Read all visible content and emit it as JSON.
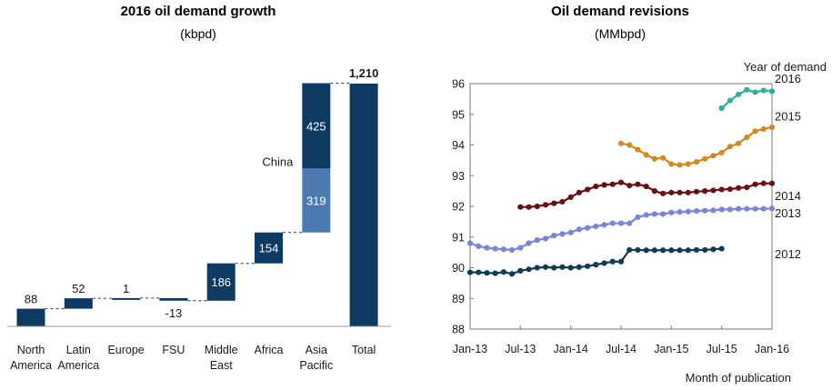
{
  "chart_data": [
    {
      "type": "bar",
      "title": "2016 oil demand growth",
      "subtitle": "(kbpd)",
      "categories": [
        "North America",
        "Latin America",
        "Europe",
        "FSU",
        "Middle East",
        "Africa",
        "Asia Pacific",
        "Total"
      ],
      "category_lines": [
        [
          "North",
          "America"
        ],
        [
          "Latin",
          "America"
        ],
        [
          "Europe"
        ],
        [
          "FSU"
        ],
        [
          "Middle",
          "East"
        ],
        [
          "Africa"
        ],
        [
          "Asia",
          "Pacific"
        ],
        [
          "Total"
        ]
      ],
      "values": [
        88,
        52,
        1,
        -13,
        186,
        154,
        744,
        1210
      ],
      "labels": [
        "88",
        "52",
        "1",
        "-13",
        "186",
        "154",
        "",
        "1,210"
      ],
      "asia_pacific_split": [
        {
          "name": "China",
          "value": 319,
          "label": "319",
          "color": "#4a7ab0"
        },
        {
          "name": "",
          "value": 425,
          "label": "425",
          "color": "#0d3a63"
        }
      ],
      "annotation": "China",
      "bar_color": "#0d3a63",
      "waterfall": true
    },
    {
      "type": "line",
      "title": "Oil demand revisions",
      "subtitle": "(MMbpd)",
      "xlabel": "Month of publication",
      "ylabel": "",
      "legend_title": "Year of demand",
      "ylim": [
        88,
        96
      ],
      "yticks": [
        88,
        89,
        90,
        91,
        92,
        93,
        94,
        95,
        96
      ],
      "xticks": [
        "Jan-13",
        "Jul-13",
        "Jan-14",
        "Jul-14",
        "Jan-15",
        "Jul-15",
        "Jan-16"
      ],
      "x_unit": "month index from Jan-13",
      "series": [
        {
          "name": "2012",
          "color": "#0f3d55",
          "x": [
            0,
            1,
            2,
            3,
            4,
            5,
            6,
            7,
            8,
            9,
            10,
            11,
            12,
            13,
            14,
            15,
            16,
            17,
            18,
            19,
            20,
            21,
            22,
            23,
            24,
            25,
            26,
            27,
            28,
            29,
            30
          ],
          "y": [
            89.85,
            89.85,
            89.83,
            89.82,
            89.86,
            89.8,
            89.9,
            89.95,
            90.0,
            90.02,
            90.0,
            90.02,
            90.0,
            90.02,
            90.05,
            90.1,
            90.15,
            90.2,
            90.2,
            90.58,
            90.58,
            90.57,
            90.57,
            90.57,
            90.57,
            90.57,
            90.57,
            90.58,
            90.58,
            90.6,
            90.62
          ]
        },
        {
          "name": "2013",
          "color": "#7a84d8",
          "x": [
            0,
            1,
            2,
            3,
            4,
            5,
            6,
            7,
            8,
            9,
            10,
            11,
            12,
            13,
            14,
            15,
            16,
            17,
            18,
            19,
            20,
            21,
            22,
            23,
            24,
            25,
            26,
            27,
            28,
            29,
            30,
            31,
            32,
            33,
            34,
            35,
            36
          ],
          "y": [
            90.8,
            90.7,
            90.65,
            90.62,
            90.6,
            90.58,
            90.65,
            90.8,
            90.9,
            90.95,
            91.05,
            91.1,
            91.15,
            91.25,
            91.3,
            91.35,
            91.4,
            91.45,
            91.45,
            91.45,
            91.65,
            91.72,
            91.75,
            91.75,
            91.8,
            91.82,
            91.83,
            91.85,
            91.86,
            91.87,
            91.9,
            91.9,
            91.92,
            91.92,
            91.92,
            91.92,
            91.93
          ]
        },
        {
          "name": "2014",
          "color": "#6b0f16",
          "x": [
            6,
            7,
            8,
            9,
            10,
            11,
            12,
            13,
            14,
            15,
            16,
            17,
            18,
            19,
            20,
            21,
            22,
            23,
            24,
            25,
            26,
            27,
            28,
            29,
            30,
            31,
            32,
            33,
            34,
            35,
            36
          ],
          "y": [
            91.98,
            91.98,
            92.0,
            92.05,
            92.1,
            92.15,
            92.3,
            92.45,
            92.55,
            92.65,
            92.7,
            92.72,
            92.78,
            92.68,
            92.72,
            92.65,
            92.5,
            92.42,
            92.45,
            92.45,
            92.45,
            92.48,
            92.5,
            92.52,
            92.55,
            92.56,
            92.6,
            92.62,
            92.72,
            92.75,
            92.75
          ]
        },
        {
          "name": "2015",
          "color": "#d18a1c",
          "x": [
            18,
            19,
            20,
            21,
            22,
            23,
            24,
            25,
            26,
            27,
            28,
            29,
            30,
            31,
            32,
            33,
            34,
            35,
            36
          ],
          "y": [
            94.05,
            94.0,
            93.85,
            93.68,
            93.55,
            93.58,
            93.38,
            93.35,
            93.38,
            93.45,
            93.55,
            93.65,
            93.75,
            93.95,
            94.05,
            94.25,
            94.45,
            94.52,
            94.58
          ]
        },
        {
          "name": "2016",
          "color": "#2bb39a",
          "x": [
            30,
            31,
            32,
            33,
            34,
            35,
            36
          ],
          "y": [
            95.2,
            95.45,
            95.65,
            95.8,
            95.72,
            95.78,
            95.75
          ]
        }
      ]
    }
  ]
}
